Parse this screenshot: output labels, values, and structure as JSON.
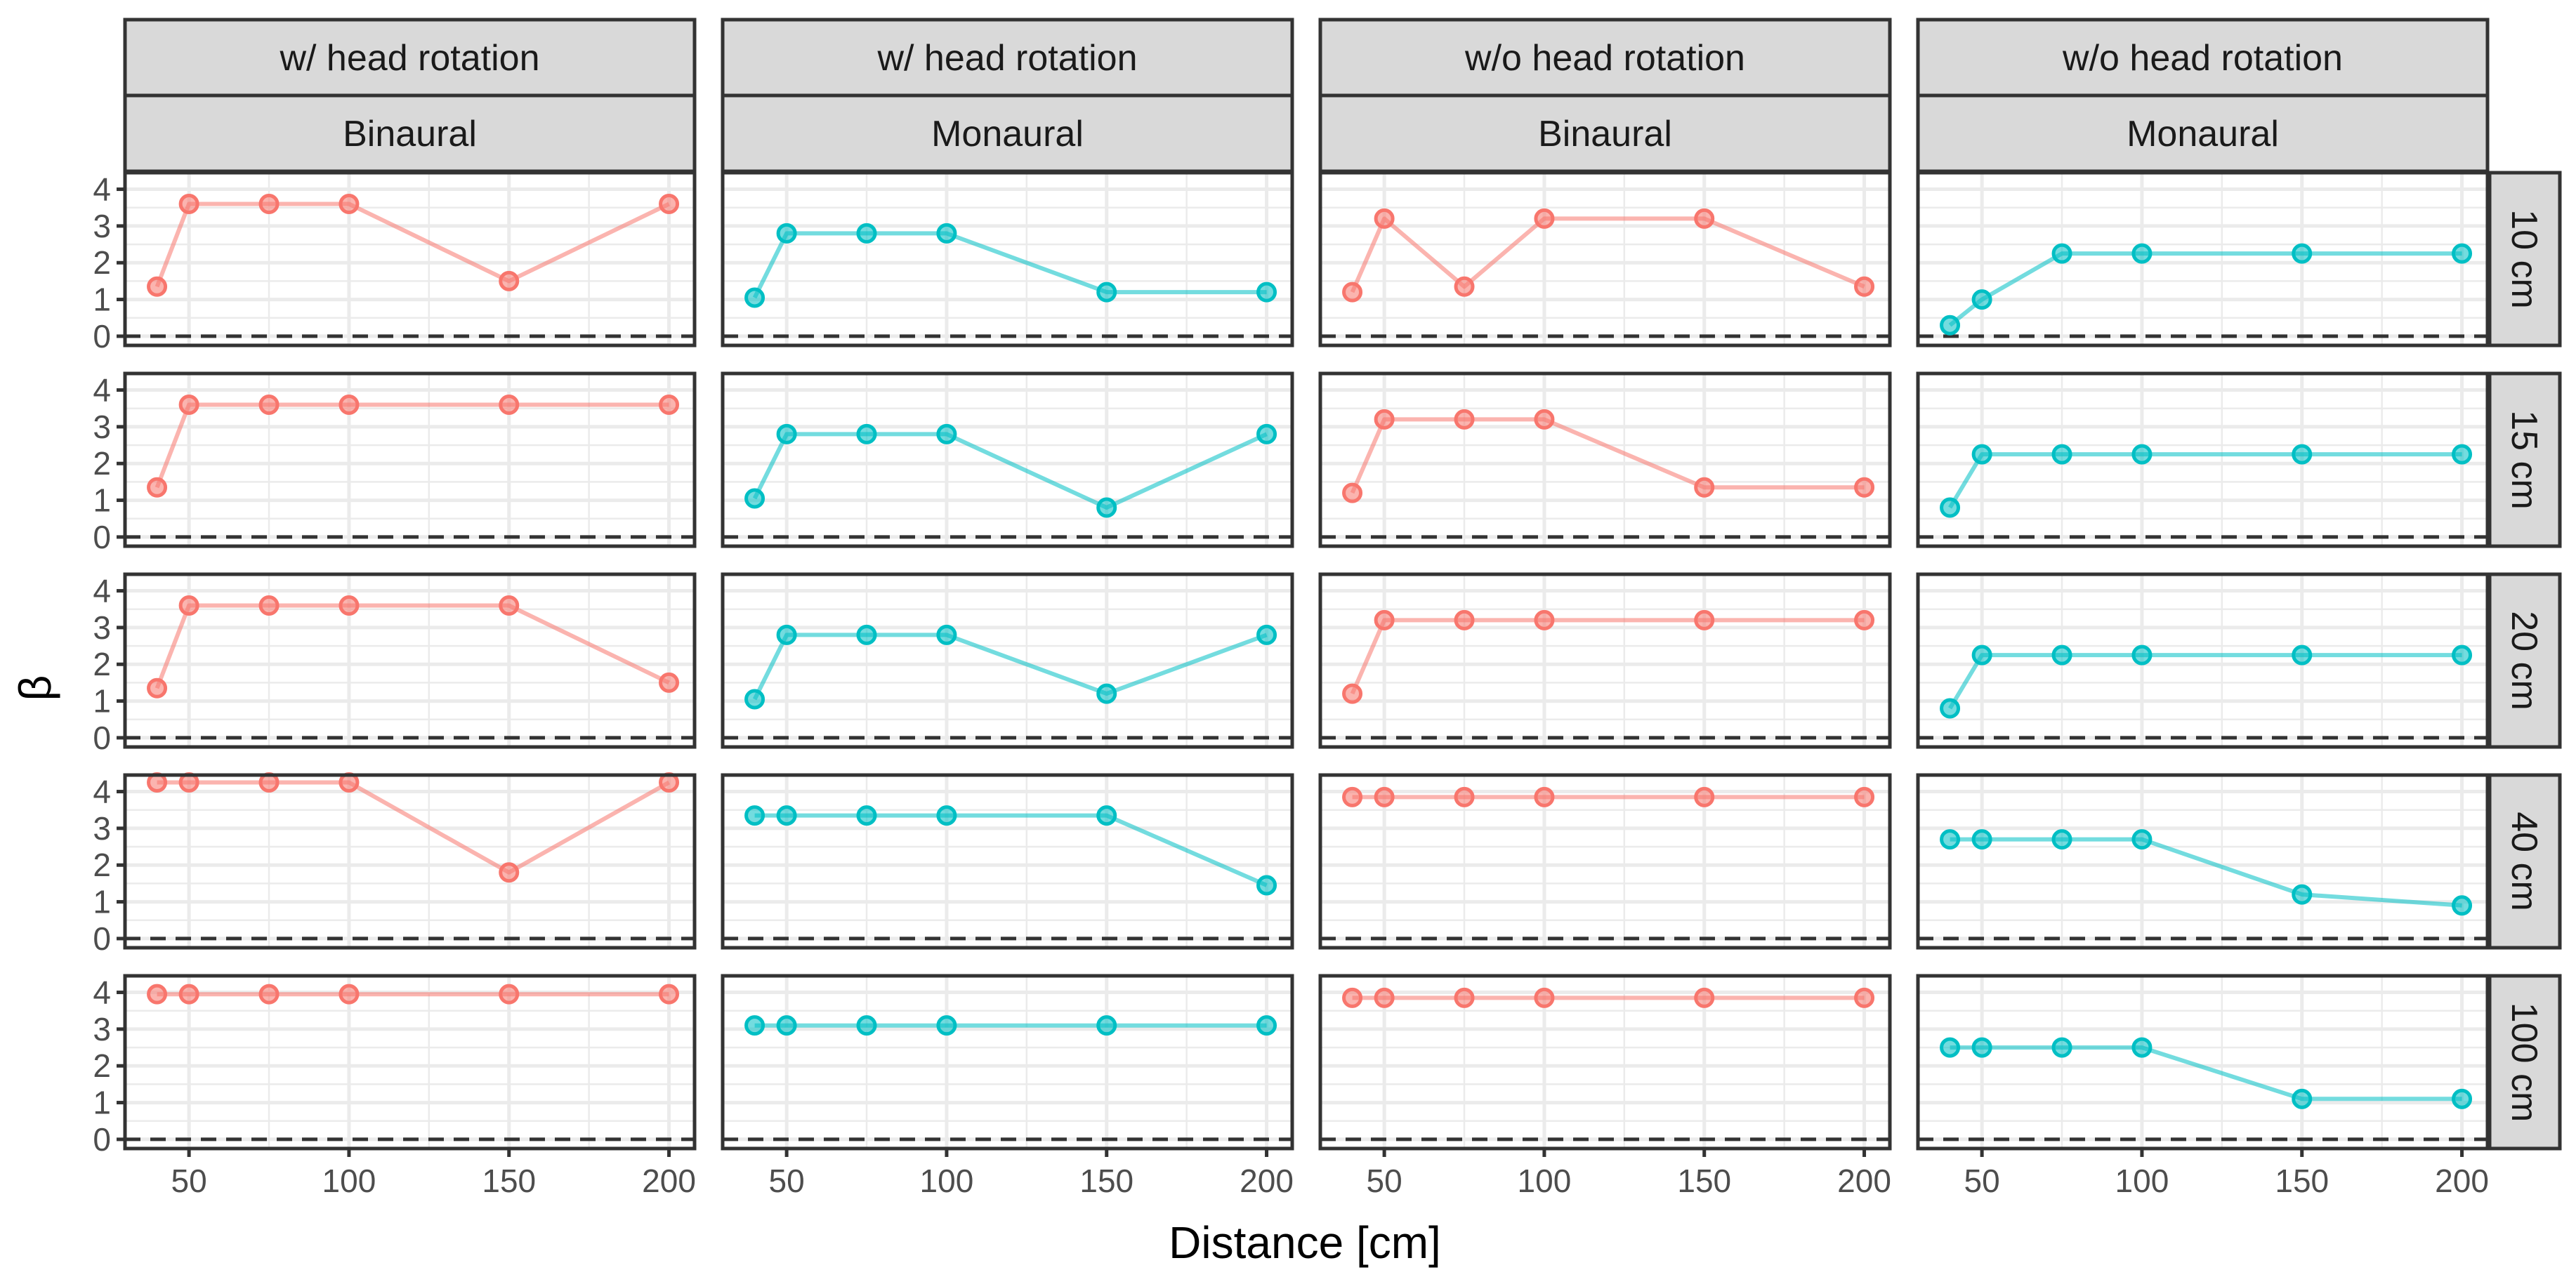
{
  "chart_data": {
    "type": "line",
    "layout": "faceted grid (rows = 5, columns = 4)",
    "xlabel": "Distance [cm]",
    "ylabel": "β",
    "x": [
      40,
      50,
      75,
      100,
      150,
      200
    ],
    "xticks": [
      50,
      100,
      150,
      200
    ],
    "xlim": [
      30,
      208
    ],
    "yticks": [
      0,
      1,
      2,
      3,
      4
    ],
    "ylim": [
      -0.25,
      4.45
    ],
    "reference_line": {
      "y": 0,
      "style": "dashed"
    },
    "colors": {
      "Binaural": "#f8766d",
      "Monaural": "#00bfc4"
    },
    "columns": [
      {
        "strip_top": "w/ head rotation",
        "strip_bottom": "Binaural",
        "series": "Binaural"
      },
      {
        "strip_top": "w/ head rotation",
        "strip_bottom": "Monaural",
        "series": "Monaural"
      },
      {
        "strip_top": "w/o head rotation",
        "strip_bottom": "Binaural",
        "series": "Binaural"
      },
      {
        "strip_top": "w/o head rotation",
        "strip_bottom": "Monaural",
        "series": "Monaural"
      }
    ],
    "rows": [
      "10 cm",
      "15 cm",
      "20 cm",
      "40 cm",
      "100 cm"
    ],
    "panels": [
      [
        [
          1.35,
          3.6,
          3.6,
          3.6,
          1.5,
          3.6
        ],
        [
          1.05,
          2.8,
          2.8,
          2.8,
          1.2,
          1.2
        ],
        [
          1.2,
          3.2,
          1.35,
          3.2,
          3.2,
          1.35
        ],
        [
          0.3,
          1.0,
          2.25,
          2.25,
          2.25,
          2.25
        ]
      ],
      [
        [
          1.35,
          3.6,
          3.6,
          3.6,
          3.6,
          3.6
        ],
        [
          1.05,
          2.8,
          2.8,
          2.8,
          0.8,
          2.8
        ],
        [
          1.2,
          3.2,
          3.2,
          3.2,
          1.35,
          1.35
        ],
        [
          0.8,
          2.25,
          2.25,
          2.25,
          2.25,
          2.25
        ]
      ],
      [
        [
          1.35,
          3.6,
          3.6,
          3.6,
          3.6,
          1.5
        ],
        [
          1.05,
          2.8,
          2.8,
          2.8,
          1.2,
          2.8
        ],
        [
          1.2,
          3.2,
          3.2,
          3.2,
          3.2,
          3.2
        ],
        [
          0.8,
          2.25,
          2.25,
          2.25,
          2.25,
          2.25
        ]
      ],
      [
        [
          4.25,
          4.25,
          4.25,
          4.25,
          1.8,
          4.25
        ],
        [
          3.35,
          3.35,
          3.35,
          3.35,
          3.35,
          1.45
        ],
        [
          3.85,
          3.85,
          3.85,
          3.85,
          3.85,
          3.85
        ],
        [
          2.7,
          2.7,
          2.7,
          2.7,
          1.2,
          0.9
        ]
      ],
      [
        [
          3.95,
          3.95,
          3.95,
          3.95,
          3.95,
          3.95
        ],
        [
          3.1,
          3.1,
          3.1,
          3.1,
          3.1,
          3.1
        ],
        [
          3.85,
          3.85,
          3.85,
          3.85,
          3.85,
          3.85
        ],
        [
          2.5,
          2.5,
          2.5,
          2.5,
          1.1,
          1.1
        ]
      ]
    ]
  }
}
